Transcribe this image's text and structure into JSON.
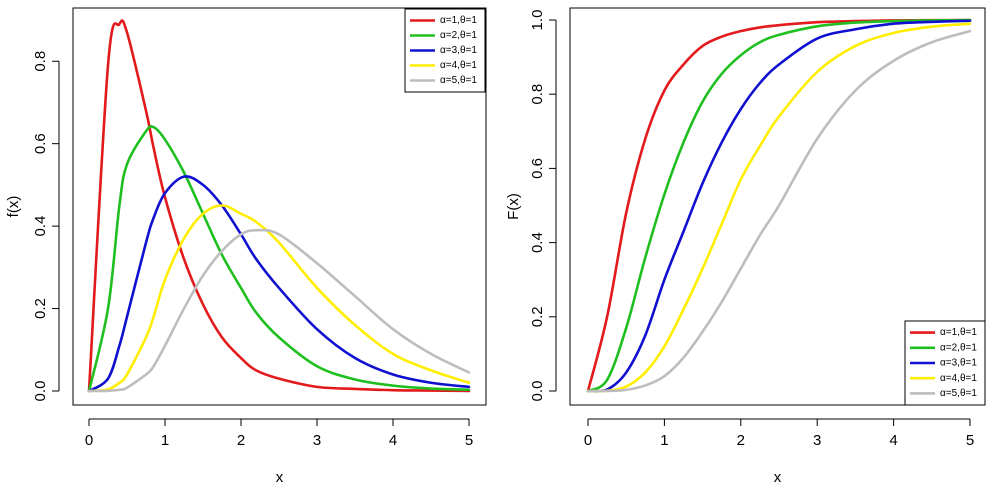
{
  "chart_data": [
    {
      "type": "line",
      "ylabel": "f(x)",
      "xlabel": "x",
      "xlim": [
        0,
        5
      ],
      "ylim": [
        0,
        0.9
      ],
      "x_ticks": [
        "0",
        "1",
        "2",
        "3",
        "4",
        "5"
      ],
      "y_ticks": [
        "0.0",
        "0.2",
        "0.4",
        "0.6",
        "0.8"
      ],
      "legend_position": "top-right",
      "x": [
        0,
        0.25,
        0.4,
        0.5,
        0.75,
        0.85,
        1,
        1.25,
        1.5,
        1.75,
        2,
        2.2,
        2.5,
        3,
        3.5,
        4,
        4.5,
        5
      ],
      "series": [
        {
          "name": "α=1,θ=1",
          "color": "#e31a1c",
          "values": [
            0,
            0.79,
            0.89,
            0.87,
            0.68,
            0.59,
            0.47,
            0.32,
            0.21,
            0.13,
            0.08,
            0.05,
            0.03,
            0.01,
            0.005,
            0.002,
            0.001,
            0.0
          ]
        },
        {
          "name": "α=2,θ=1",
          "color": "#1fbf1f",
          "values": [
            0,
            0.2,
            0.45,
            0.55,
            0.63,
            0.64,
            0.61,
            0.53,
            0.43,
            0.33,
            0.25,
            0.19,
            0.13,
            0.06,
            0.028,
            0.013,
            0.006,
            0.003
          ]
        },
        {
          "name": "α=3,θ=1",
          "color": "#1010d0",
          "values": [
            0,
            0.03,
            0.11,
            0.18,
            0.36,
            0.42,
            0.48,
            0.52,
            0.5,
            0.45,
            0.38,
            0.32,
            0.25,
            0.15,
            0.08,
            0.04,
            0.02,
            0.01
          ]
        },
        {
          "name": "α=4,θ=1",
          "color": "#ffee00",
          "values": [
            0,
            0.004,
            0.02,
            0.04,
            0.13,
            0.18,
            0.27,
            0.37,
            0.43,
            0.45,
            0.43,
            0.41,
            0.36,
            0.25,
            0.16,
            0.09,
            0.05,
            0.02
          ]
        },
        {
          "name": "α=5,θ=1",
          "color": "#bdbdbd",
          "values": [
            0,
            0.0005,
            0.003,
            0.008,
            0.04,
            0.06,
            0.11,
            0.2,
            0.28,
            0.34,
            0.38,
            0.39,
            0.38,
            0.31,
            0.23,
            0.15,
            0.09,
            0.045
          ]
        }
      ]
    },
    {
      "type": "line",
      "ylabel": "F(x)",
      "xlabel": "x",
      "xlim": [
        0,
        5
      ],
      "ylim": [
        0,
        1.0
      ],
      "x_ticks": [
        "0",
        "1",
        "2",
        "3",
        "4",
        "5"
      ],
      "y_ticks": [
        "0.0",
        "0.2",
        "0.4",
        "0.6",
        "0.8",
        "1.0"
      ],
      "legend_position": "bottom-right",
      "x": [
        0,
        0.25,
        0.5,
        0.75,
        1,
        1.25,
        1.5,
        1.75,
        2,
        2.25,
        2.5,
        3,
        3.5,
        4,
        4.5,
        5
      ],
      "series": [
        {
          "name": "α=1,θ=1",
          "color": "#e31a1c",
          "values": [
            0,
            0.2,
            0.48,
            0.68,
            0.81,
            0.88,
            0.93,
            0.955,
            0.97,
            0.98,
            0.986,
            0.994,
            0.997,
            0.999,
            0.9995,
            1.0
          ]
        },
        {
          "name": "α=2,θ=1",
          "color": "#1fbf1f",
          "values": [
            0,
            0.03,
            0.17,
            0.36,
            0.53,
            0.67,
            0.78,
            0.855,
            0.905,
            0.94,
            0.96,
            0.983,
            0.993,
            0.997,
            0.999,
            0.9995
          ]
        },
        {
          "name": "α=3,θ=1",
          "color": "#1010d0",
          "values": [
            0,
            0.004,
            0.05,
            0.15,
            0.3,
            0.43,
            0.56,
            0.67,
            0.76,
            0.83,
            0.88,
            0.95,
            0.975,
            0.99,
            0.995,
            0.998
          ]
        },
        {
          "name": "α=4,θ=1",
          "color": "#ffee00",
          "values": [
            0,
            0.0005,
            0.012,
            0.05,
            0.12,
            0.22,
            0.33,
            0.45,
            0.57,
            0.66,
            0.74,
            0.86,
            0.93,
            0.965,
            0.982,
            0.99
          ]
        },
        {
          "name": "α=5,θ=1",
          "color": "#bdbdbd",
          "values": [
            0,
            0.0001,
            0.003,
            0.015,
            0.04,
            0.09,
            0.16,
            0.24,
            0.33,
            0.42,
            0.5,
            0.68,
            0.81,
            0.89,
            0.94,
            0.97
          ]
        }
      ]
    }
  ]
}
